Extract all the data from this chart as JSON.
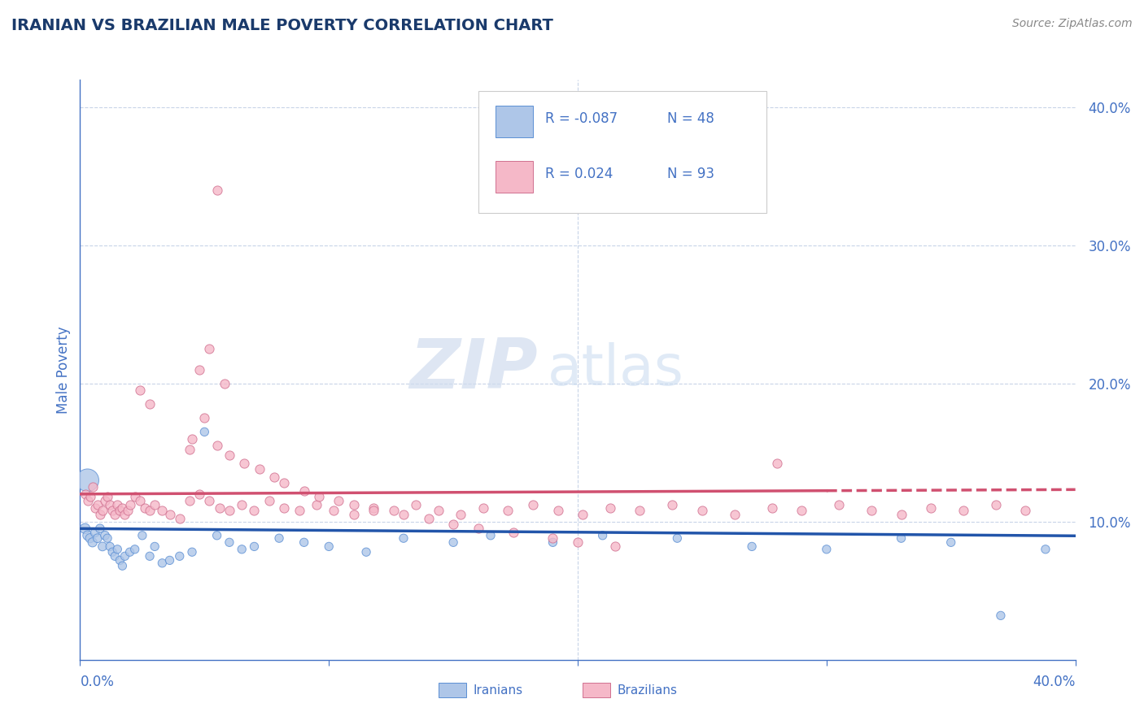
{
  "title": "IRANIAN VS BRAZILIAN MALE POVERTY CORRELATION CHART",
  "source": "Source: ZipAtlas.com",
  "ylabel": "Male Poverty",
  "xlim": [
    0.0,
    0.4
  ],
  "ylim": [
    0.0,
    0.42
  ],
  "ytick_positions": [
    0.0,
    0.1,
    0.2,
    0.3,
    0.4
  ],
  "ytick_labels": [
    "",
    "10.0%",
    "20.0%",
    "30.0%",
    "40.0%"
  ],
  "xtick_positions": [
    0.0,
    0.1,
    0.2,
    0.3,
    0.4
  ],
  "title_color": "#1a3a6b",
  "axis_color": "#4472c4",
  "tick_color": "#4472c4",
  "grid_color": "#c8d4e8",
  "background_color": "#ffffff",
  "watermark_zip": "ZIP",
  "watermark_atlas": "atlas",
  "legend_R_iranian": "-0.087",
  "legend_N_iranian": "48",
  "legend_R_brazilian": " 0.024",
  "legend_N_brazilian": "93",
  "iranian_color": "#aec6e8",
  "iranian_edge_color": "#5b8fd4",
  "iranian_line_color": "#2255aa",
  "brazilian_color": "#f5b8c8",
  "brazilian_edge_color": "#d07090",
  "brazilian_line_color": "#d05070",
  "iranian_x": [
    0.002,
    0.003,
    0.004,
    0.005,
    0.006,
    0.007,
    0.008,
    0.009,
    0.01,
    0.011,
    0.012,
    0.013,
    0.014,
    0.015,
    0.016,
    0.017,
    0.018,
    0.02,
    0.022,
    0.025,
    0.028,
    0.03,
    0.033,
    0.036,
    0.04,
    0.045,
    0.05,
    0.055,
    0.06,
    0.065,
    0.07,
    0.08,
    0.09,
    0.1,
    0.115,
    0.13,
    0.15,
    0.165,
    0.19,
    0.21,
    0.24,
    0.27,
    0.3,
    0.33,
    0.35,
    0.37,
    0.388,
    0.003
  ],
  "iranian_y": [
    0.095,
    0.09,
    0.088,
    0.085,
    0.092,
    0.088,
    0.095,
    0.082,
    0.09,
    0.088,
    0.082,
    0.078,
    0.075,
    0.08,
    0.072,
    0.068,
    0.075,
    0.078,
    0.08,
    0.09,
    0.075,
    0.082,
    0.07,
    0.072,
    0.075,
    0.078,
    0.165,
    0.09,
    0.085,
    0.08,
    0.082,
    0.088,
    0.085,
    0.082,
    0.078,
    0.088,
    0.085,
    0.09,
    0.085,
    0.09,
    0.088,
    0.082,
    0.08,
    0.088,
    0.085,
    0.032,
    0.08,
    0.13
  ],
  "iranian_sizes": [
    80,
    70,
    65,
    65,
    60,
    60,
    60,
    60,
    60,
    55,
    55,
    55,
    55,
    55,
    55,
    55,
    55,
    55,
    55,
    55,
    55,
    55,
    55,
    55,
    55,
    55,
    55,
    55,
    55,
    55,
    55,
    55,
    55,
    55,
    55,
    55,
    55,
    55,
    55,
    55,
    55,
    55,
    55,
    55,
    55,
    55,
    55,
    400
  ],
  "brazilian_x": [
    0.002,
    0.003,
    0.004,
    0.005,
    0.006,
    0.007,
    0.008,
    0.009,
    0.01,
    0.011,
    0.012,
    0.013,
    0.014,
    0.015,
    0.016,
    0.017,
    0.018,
    0.019,
    0.02,
    0.022,
    0.024,
    0.026,
    0.028,
    0.03,
    0.033,
    0.036,
    0.04,
    0.044,
    0.048,
    0.052,
    0.056,
    0.06,
    0.065,
    0.07,
    0.076,
    0.082,
    0.088,
    0.095,
    0.102,
    0.11,
    0.118,
    0.126,
    0.135,
    0.144,
    0.153,
    0.162,
    0.172,
    0.182,
    0.192,
    0.202,
    0.213,
    0.225,
    0.238,
    0.25,
    0.263,
    0.278,
    0.29,
    0.305,
    0.318,
    0.33,
    0.342,
    0.355,
    0.368,
    0.38,
    0.045,
    0.05,
    0.055,
    0.024,
    0.028,
    0.06,
    0.066,
    0.055,
    0.072,
    0.044,
    0.078,
    0.082,
    0.09,
    0.096,
    0.104,
    0.11,
    0.118,
    0.13,
    0.14,
    0.15,
    0.16,
    0.174,
    0.19,
    0.2,
    0.215,
    0.28,
    0.048,
    0.052,
    0.058
  ],
  "brazilian_y": [
    0.12,
    0.115,
    0.118,
    0.125,
    0.11,
    0.112,
    0.105,
    0.108,
    0.115,
    0.118,
    0.112,
    0.108,
    0.105,
    0.112,
    0.108,
    0.11,
    0.105,
    0.108,
    0.112,
    0.118,
    0.115,
    0.11,
    0.108,
    0.112,
    0.108,
    0.105,
    0.102,
    0.115,
    0.12,
    0.115,
    0.11,
    0.108,
    0.112,
    0.108,
    0.115,
    0.11,
    0.108,
    0.112,
    0.108,
    0.105,
    0.11,
    0.108,
    0.112,
    0.108,
    0.105,
    0.11,
    0.108,
    0.112,
    0.108,
    0.105,
    0.11,
    0.108,
    0.112,
    0.108,
    0.105,
    0.11,
    0.108,
    0.112,
    0.108,
    0.105,
    0.11,
    0.108,
    0.112,
    0.108,
    0.16,
    0.175,
    0.155,
    0.195,
    0.185,
    0.148,
    0.142,
    0.34,
    0.138,
    0.152,
    0.132,
    0.128,
    0.122,
    0.118,
    0.115,
    0.112,
    0.108,
    0.105,
    0.102,
    0.098,
    0.095,
    0.092,
    0.088,
    0.085,
    0.082,
    0.142,
    0.21,
    0.225,
    0.2
  ]
}
